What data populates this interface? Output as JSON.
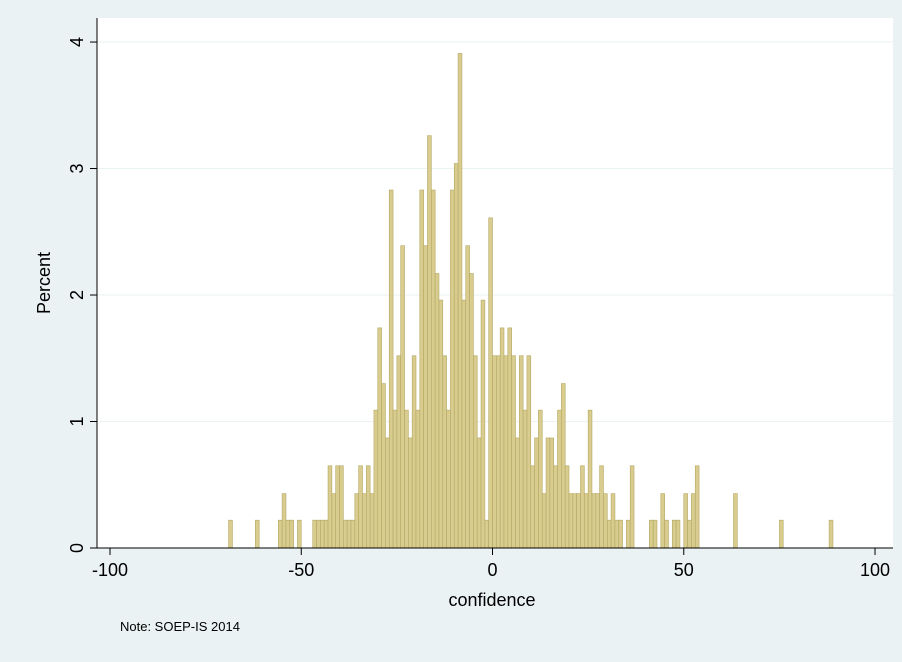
{
  "chart_data": {
    "type": "histogram",
    "x_label": "confidence",
    "y_label": "Percent",
    "note": "Note: SOEP-IS 2014",
    "color": "#d8cc8e",
    "edge_color": "#b5a763",
    "xlim": [
      -103.4,
      104.7
    ],
    "ylim": [
      0,
      4.19
    ],
    "xticks": [
      -100,
      -50,
      0,
      50,
      100
    ],
    "yticks": [
      0,
      1,
      2,
      3,
      4
    ],
    "grid": true,
    "bins": [
      -70,
      -69,
      -68,
      -67,
      -66,
      -65,
      -64,
      -63,
      -62,
      -61,
      -60,
      -59,
      -58,
      -57,
      -56,
      -55,
      -54,
      -53,
      -52,
      -51,
      -50,
      -49,
      -48,
      -47,
      -46,
      -45,
      -44,
      -43,
      -42,
      -41,
      -40,
      -39,
      -38,
      -37,
      -36,
      -35,
      -34,
      -33,
      -32,
      -31,
      -30,
      -29,
      -28,
      -27,
      -26,
      -25,
      -24,
      -23,
      -22,
      -21,
      -20,
      -19,
      -18,
      -17,
      -16,
      -15,
      -14,
      -13,
      -12,
      -11,
      -10,
      -9,
      -8,
      -7,
      -6,
      -5,
      -4,
      -3,
      -2,
      -1,
      0,
      1,
      2,
      3,
      4,
      5,
      6,
      7,
      8,
      9,
      10,
      11,
      12,
      13,
      14,
      15,
      16,
      17,
      18,
      19,
      20,
      21,
      22,
      23,
      24,
      25,
      26,
      27,
      28,
      29,
      30,
      31,
      32,
      33,
      34,
      35,
      36,
      37,
      38,
      39,
      40,
      41,
      42,
      43,
      44,
      45,
      46,
      47,
      48,
      49,
      50,
      51,
      52,
      53,
      54,
      55,
      56,
      57,
      58,
      59,
      60,
      61,
      62,
      63,
      64,
      65,
      66,
      67,
      68,
      69,
      70,
      71,
      72,
      73,
      74,
      75,
      76,
      77,
      78,
      79,
      80,
      81,
      82,
      83,
      84,
      85,
      86,
      87,
      88,
      89,
      90
    ],
    "values": [
      0,
      0.22,
      0,
      0,
      0,
      0,
      0,
      0,
      0.22,
      0,
      0,
      0,
      0,
      0,
      0.22,
      0.43,
      0.22,
      0.22,
      0,
      0.22,
      0,
      0,
      0,
      0.22,
      0.22,
      0.22,
      0.22,
      0.65,
      0.43,
      0.65,
      0.65,
      0.22,
      0.22,
      0.22,
      0.43,
      0.65,
      0.43,
      0.65,
      0.43,
      1.09,
      1.74,
      1.3,
      0.87,
      2.83,
      1.09,
      1.52,
      2.39,
      1.09,
      0.87,
      1.52,
      1.09,
      2.83,
      2.39,
      3.26,
      2.83,
      2.17,
      1.96,
      1.52,
      1.09,
      2.83,
      3.04,
      3.91,
      1.96,
      2.39,
      2.17,
      1.52,
      0.87,
      1.96,
      0.22,
      2.61,
      1.52,
      1.52,
      1.74,
      1.52,
      1.74,
      1.52,
      0.87,
      1.52,
      1.09,
      1.52,
      0.65,
      0.87,
      1.09,
      0.43,
      0.87,
      0.87,
      0.65,
      1.09,
      1.3,
      0.65,
      0.43,
      0.43,
      0.43,
      0.65,
      0.43,
      1.09,
      0.43,
      0.43,
      0.65,
      0.43,
      0.22,
      0.43,
      0.22,
      0.22,
      0,
      0.22,
      0.65,
      0,
      0,
      0,
      0,
      0.22,
      0.22,
      0,
      0.43,
      0.22,
      0,
      0.22,
      0.22,
      0,
      0.43,
      0.22,
      0.43,
      0.65,
      0,
      0,
      0,
      0,
      0,
      0,
      0,
      0,
      0,
      0.43,
      0,
      0,
      0,
      0,
      0,
      0,
      0,
      0,
      0,
      0,
      0,
      0.22,
      0,
      0,
      0,
      0,
      0,
      0,
      0,
      0,
      0,
      0,
      0,
      0,
      0.22,
      0
    ]
  }
}
